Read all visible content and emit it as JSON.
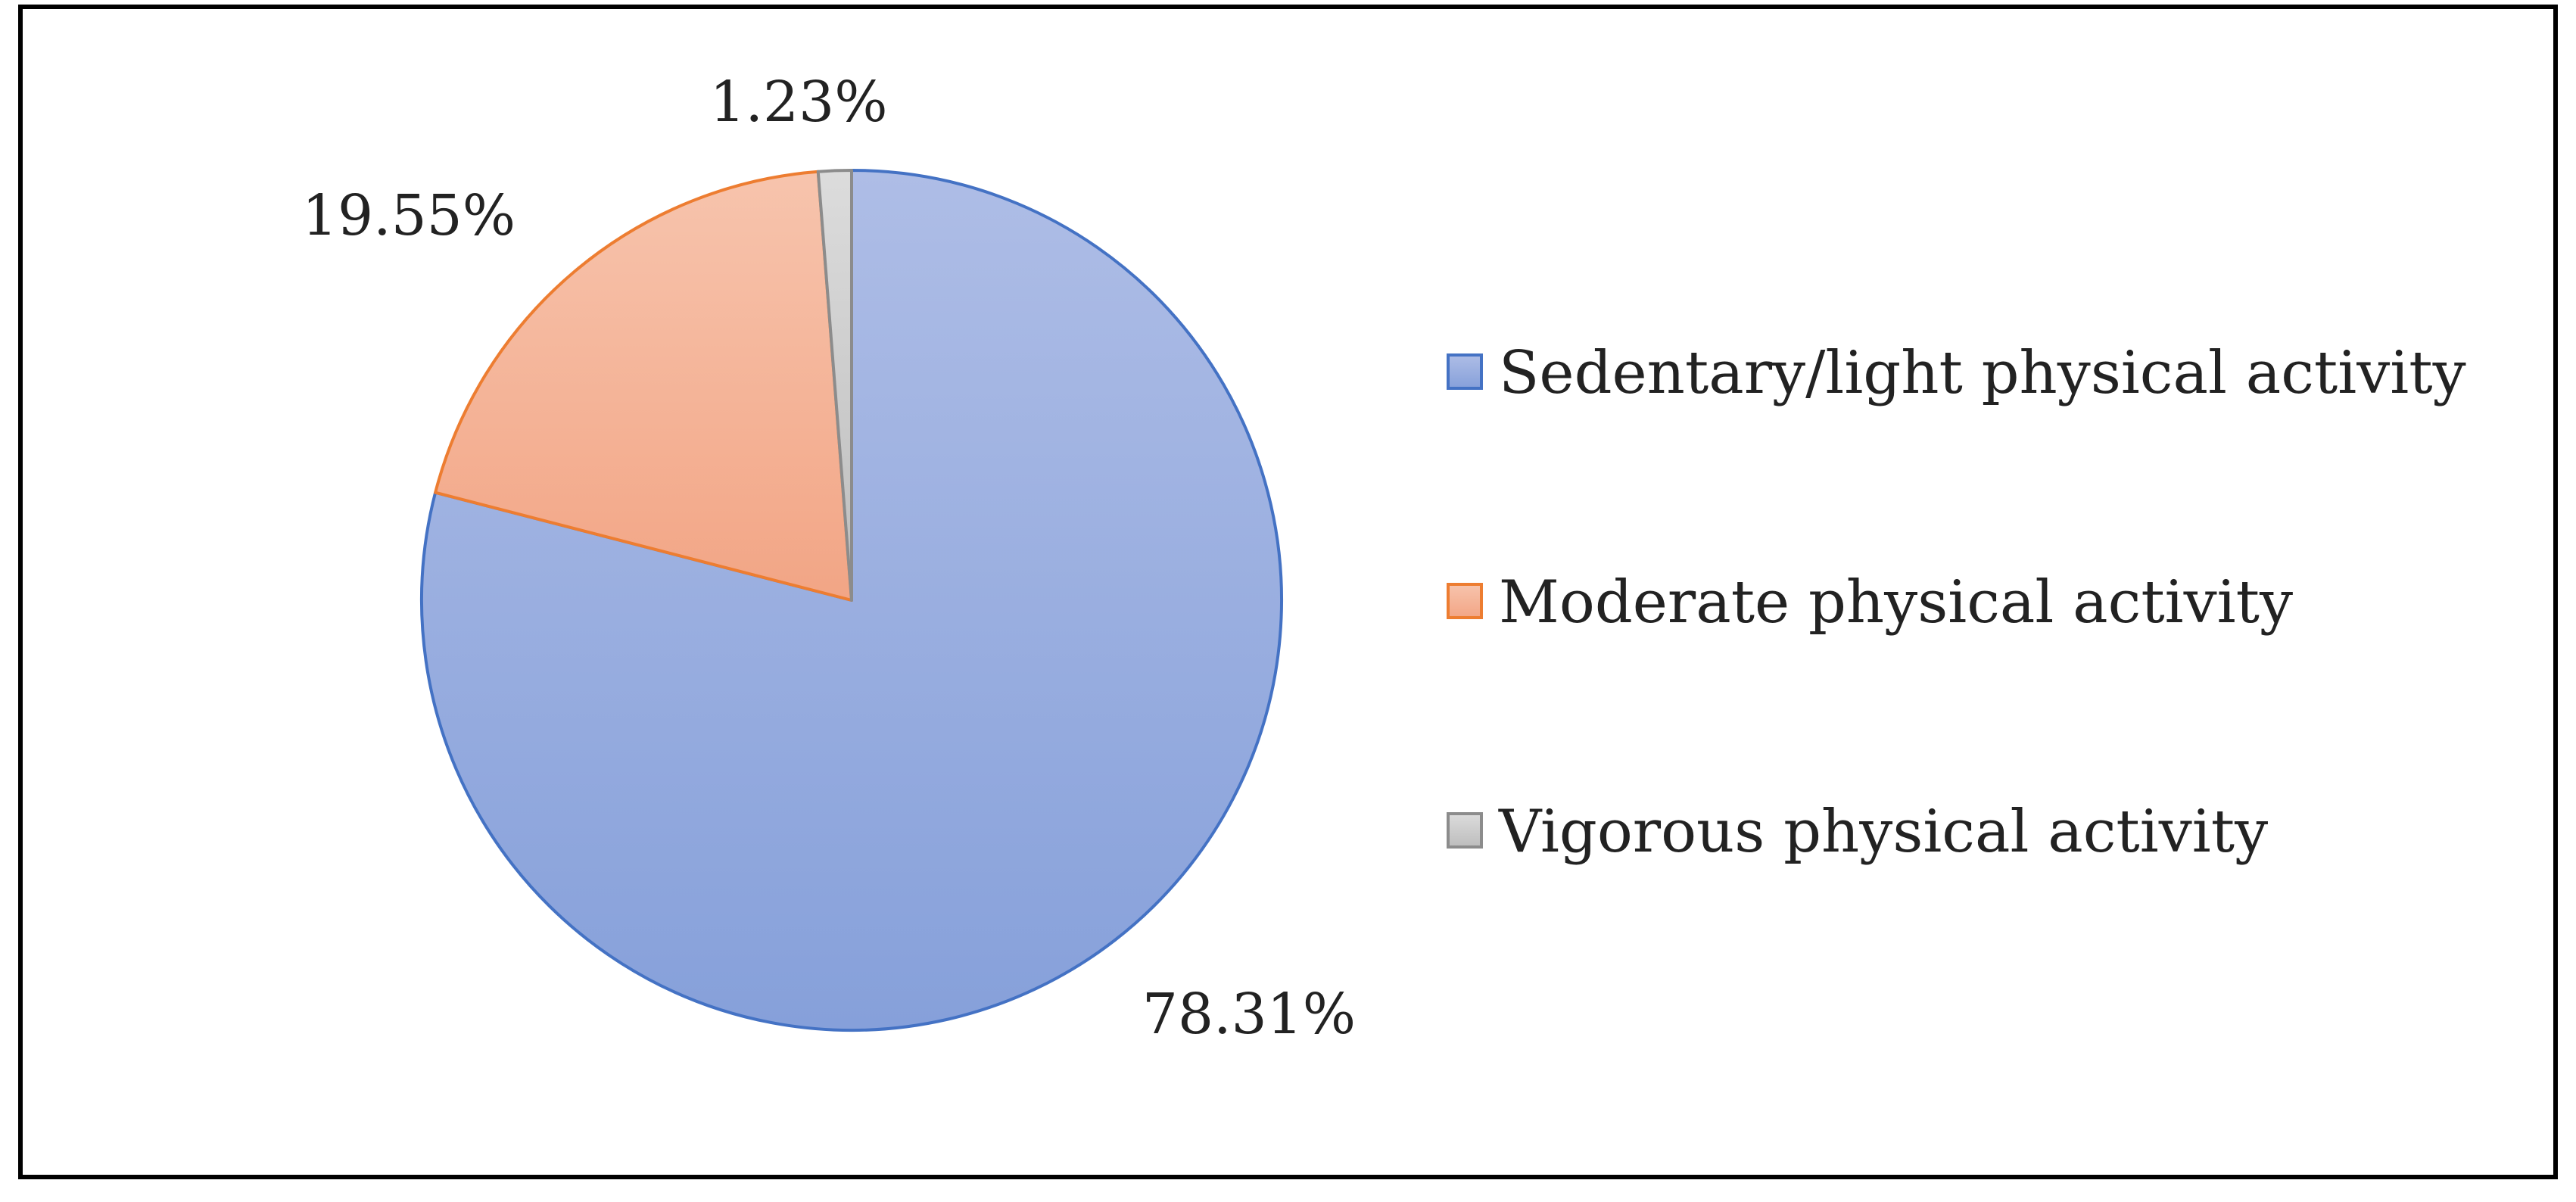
{
  "chart_data": {
    "type": "pie",
    "title": "",
    "legend_position": "right",
    "slices": [
      {
        "label": "Sedentary/light physical activity",
        "value": 78.31,
        "value_label": "78.31%",
        "color": "#94a9dc",
        "edge_color": "#4472c4"
      },
      {
        "label": "Moderate physical activity",
        "value": 19.55,
        "value_label": "19.55%",
        "color": "#f4b39a",
        "edge_color": "#ed7d31"
      },
      {
        "label": "Vigorous physical activity",
        "value": 1.23,
        "value_label": "1.23%",
        "color": "#c9c9c9",
        "edge_color": "#8c8c8c"
      }
    ]
  }
}
